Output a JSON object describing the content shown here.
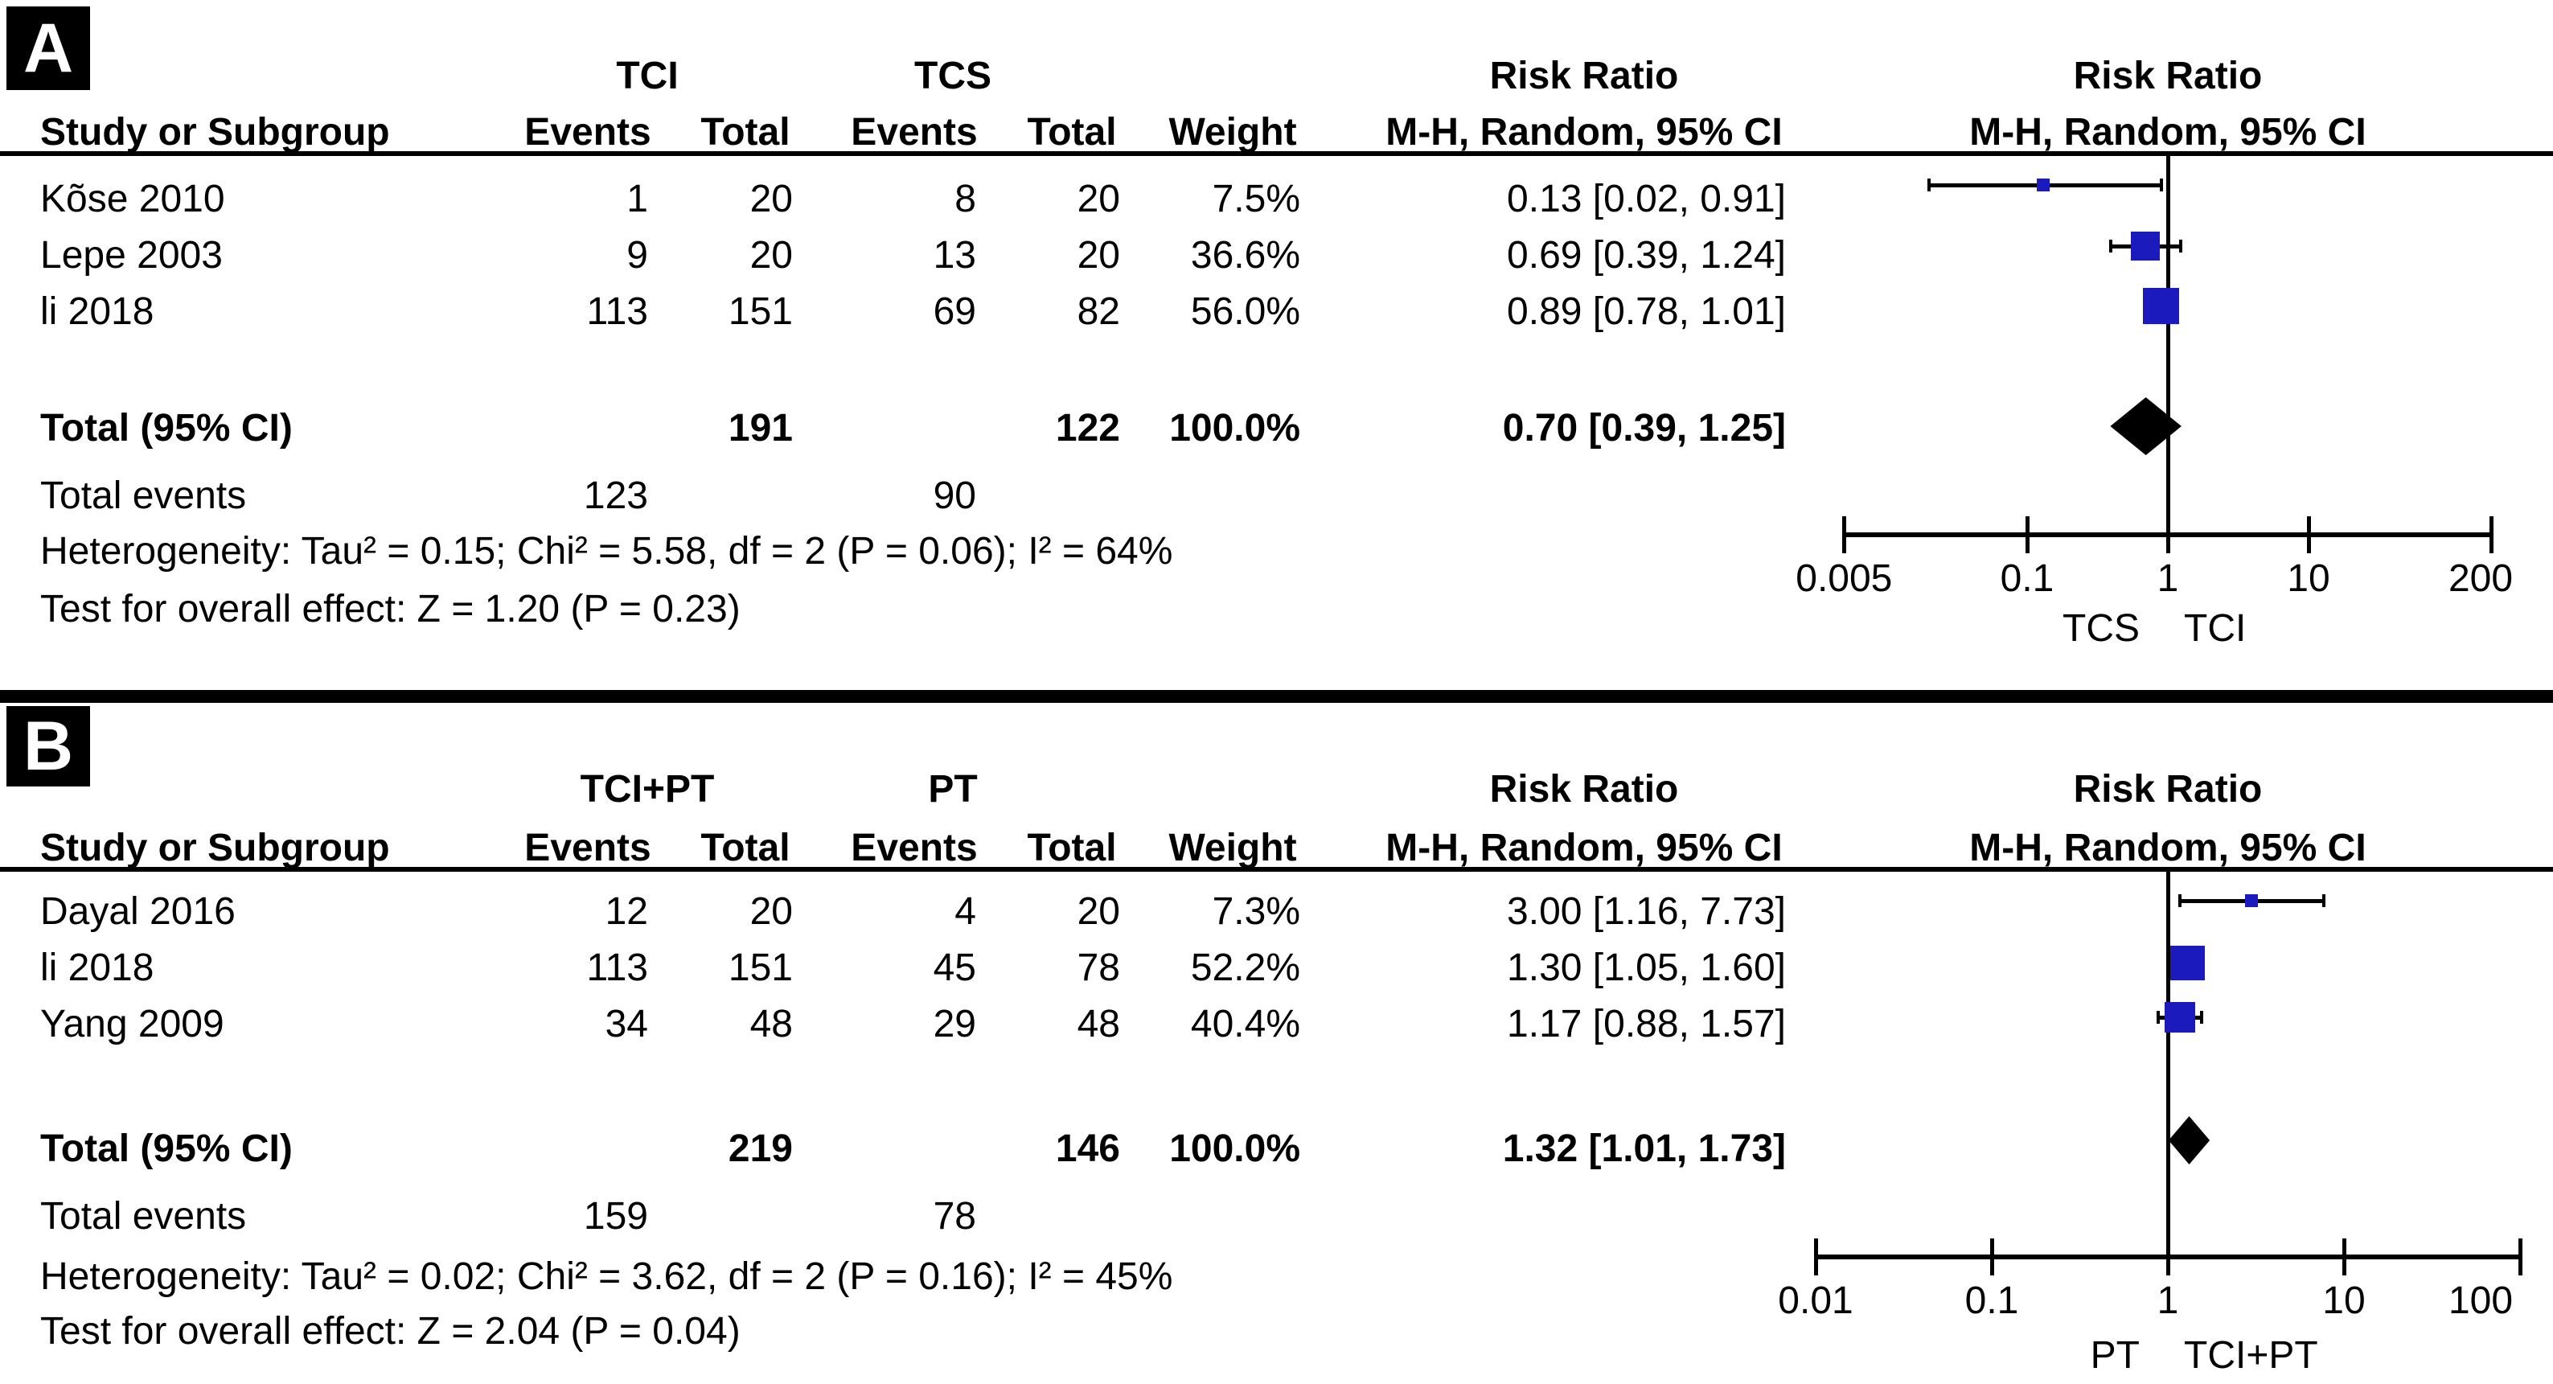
{
  "colors": {
    "marker_blue": "#1b1bbd",
    "diamond_black": "#000000",
    "line_black": "#000000"
  },
  "figure": {
    "panels": [
      {
        "panel_label": "A",
        "group1_header": "TCI",
        "group2_header": "TCS",
        "rr_header": "Risk Ratio",
        "rr_header_plot": "Risk Ratio",
        "study_col_header": "Study or Subgroup",
        "events_header_1": "Events",
        "total_header_1": "Total",
        "events_header_2": "Events",
        "total_header_2": "Total",
        "weight_header": "Weight",
        "mh_header": "M-H, Random, 95% CI",
        "mh_header_plot": "M-H, Random, 95% CI",
        "studies": [
          {
            "name": "Kõse 2010",
            "events1": "1",
            "total1": "20",
            "events2": "8",
            "total2": "20",
            "weight": "7.5%",
            "rr_ci": "0.13 [0.02, 0.91]"
          },
          {
            "name": "Lepe 2003",
            "events1": "9",
            "total1": "20",
            "events2": "13",
            "total2": "20",
            "weight": "36.6%",
            "rr_ci": "0.69 [0.39, 1.24]"
          },
          {
            "name": "li 2018",
            "events1": "113",
            "total1": "151",
            "events2": "69",
            "total2": "82",
            "weight": "56.0%",
            "rr_ci": "0.89 [0.78, 1.01]"
          }
        ],
        "total_row": {
          "label": "Total (95% CI)",
          "total1": "191",
          "total2": "122",
          "weight": "100.0%",
          "rr_ci": "0.70 [0.39, 1.25]"
        },
        "total_events_row": {
          "label": "Total events",
          "events1": "123",
          "events2": "90"
        },
        "heterogeneity": "Heterogeneity: Tau² = 0.15; Chi² = 5.58, df = 2 (P = 0.06); I² = 64%",
        "overall_effect": "Test for overall effect: Z = 1.20 (P = 0.23)",
        "axis_tick_labels": [
          "0.005",
          "0.1",
          "1",
          "10",
          "200"
        ],
        "favours_left": "TCS",
        "favours_right": "TCI"
      },
      {
        "panel_label": "B",
        "group1_header": "TCI+PT",
        "group2_header": "PT",
        "rr_header": "Risk Ratio",
        "rr_header_plot": "Risk Ratio",
        "study_col_header": "Study or Subgroup",
        "events_header_1": "Events",
        "total_header_1": "Total",
        "events_header_2": "Events",
        "total_header_2": "Total",
        "weight_header": "Weight",
        "mh_header": "M-H, Random, 95% CI",
        "mh_header_plot": "M-H, Random, 95% CI",
        "studies": [
          {
            "name": "Dayal 2016",
            "events1": "12",
            "total1": "20",
            "events2": "4",
            "total2": "20",
            "weight": "7.3%",
            "rr_ci": "3.00 [1.16, 7.73]"
          },
          {
            "name": "li 2018",
            "events1": "113",
            "total1": "151",
            "events2": "45",
            "total2": "78",
            "weight": "52.2%",
            "rr_ci": "1.30 [1.05, 1.60]"
          },
          {
            "name": "Yang 2009",
            "events1": "34",
            "total1": "48",
            "events2": "29",
            "total2": "48",
            "weight": "40.4%",
            "rr_ci": "1.17 [0.88, 1.57]"
          }
        ],
        "total_row": {
          "label": "Total (95% CI)",
          "total1": "219",
          "total2": "146",
          "weight": "100.0%",
          "rr_ci": "1.32 [1.01, 1.73]"
        },
        "total_events_row": {
          "label": "Total events",
          "events1": "159",
          "events2": "78"
        },
        "heterogeneity": "Heterogeneity: Tau² = 0.02; Chi² = 3.62, df = 2 (P = 0.16); I² = 45%",
        "overall_effect": "Test for overall effect: Z = 2.04 (P = 0.04)",
        "axis_tick_labels": [
          "0.01",
          "0.1",
          "1",
          "10",
          "100"
        ],
        "favours_left": "PT",
        "favours_right": "TCI+PT"
      }
    ]
  },
  "chart_data": [
    {
      "type": "forest",
      "title": "Risk Ratio",
      "effect_measure": "M-H, Random, 95% CI",
      "comparison": "TCI vs TCS",
      "x_scale": "log",
      "x_ticks": [
        0.005,
        0.1,
        1,
        10,
        200
      ],
      "studies": [
        {
          "name": "Kõse 2010",
          "rr": 0.13,
          "ci_low": 0.02,
          "ci_high": 0.91,
          "weight_pct": 7.5
        },
        {
          "name": "Lepe 2003",
          "rr": 0.69,
          "ci_low": 0.39,
          "ci_high": 1.24,
          "weight_pct": 36.6
        },
        {
          "name": "li 2018",
          "rr": 0.89,
          "ci_low": 0.78,
          "ci_high": 1.01,
          "weight_pct": 56.0
        }
      ],
      "total": {
        "rr": 0.7,
        "ci_low": 0.39,
        "ci_high": 1.25
      },
      "favours": [
        "TCS",
        "TCI"
      ]
    },
    {
      "type": "forest",
      "title": "Risk Ratio",
      "effect_measure": "M-H, Random, 95% CI",
      "comparison": "TCI+PT vs PT",
      "x_scale": "log",
      "x_ticks": [
        0.01,
        0.1,
        1,
        10,
        100
      ],
      "studies": [
        {
          "name": "Dayal 2016",
          "rr": 3.0,
          "ci_low": 1.16,
          "ci_high": 7.73,
          "weight_pct": 7.3
        },
        {
          "name": "li 2018",
          "rr": 1.3,
          "ci_low": 1.05,
          "ci_high": 1.6,
          "weight_pct": 52.2
        },
        {
          "name": "Yang 2009",
          "rr": 1.17,
          "ci_low": 0.88,
          "ci_high": 1.57,
          "weight_pct": 40.4
        }
      ],
      "total": {
        "rr": 1.32,
        "ci_low": 1.01,
        "ci_high": 1.73
      },
      "favours": [
        "PT",
        "TCI+PT"
      ]
    }
  ]
}
